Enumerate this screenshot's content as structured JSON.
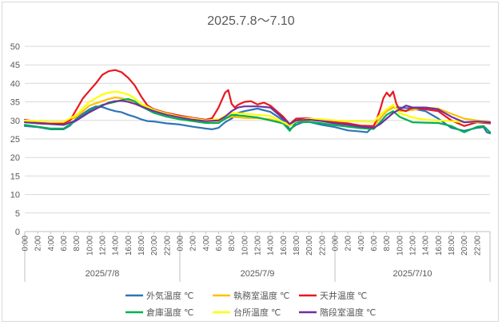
{
  "chart_data": {
    "type": "line",
    "title": "2025.7.8～7.10",
    "ylim": [
      0,
      50
    ],
    "y_ticks": [
      "0",
      "5",
      "10",
      "15",
      "20",
      "25",
      "30",
      "35",
      "40",
      "45",
      "50"
    ],
    "x_unit_hours": 72,
    "time_tick_labels": [
      "0:00",
      "2:00",
      "4:00",
      "6:00",
      "8:00",
      "10:00",
      "12:00",
      "14:00",
      "16:00",
      "18:00",
      "20:00",
      "22:00"
    ],
    "date_labels": [
      "2025/7/8",
      "2025/7/9",
      "2025/7/10"
    ],
    "grid": "horizontal",
    "legend_position": "bottom",
    "series": [
      {
        "name": "外気温度 ℃",
        "color": "#2e75b6",
        "x": [
          0,
          2,
          4,
          6,
          7,
          8,
          9,
          10,
          11,
          12,
          13,
          14,
          15,
          16,
          17,
          18,
          19,
          20,
          22,
          24,
          26,
          28,
          29,
          30,
          31,
          32,
          33,
          34,
          36,
          38,
          40,
          41,
          42,
          43,
          44,
          46,
          48,
          50,
          52,
          53,
          54,
          55,
          56,
          57,
          58,
          60,
          62,
          64,
          66,
          68,
          70,
          71,
          71.5,
          72
        ],
        "y": [
          28.5,
          28.2,
          27.6,
          27.6,
          28.6,
          30.5,
          31.8,
          33,
          33.8,
          33.6,
          33,
          32.5,
          32.2,
          31.5,
          31,
          30.3,
          29.8,
          29.7,
          29.2,
          28.9,
          28.3,
          27.8,
          27.6,
          28,
          29.5,
          30.5,
          32,
          32.5,
          33.2,
          32.3,
          30,
          27.6,
          28.8,
          29.5,
          29.6,
          28.8,
          28.2,
          27.3,
          27,
          26.8,
          28.6,
          30.5,
          32.5,
          33.5,
          33.5,
          33.2,
          32.5,
          30.5,
          28,
          27.2,
          28,
          28.2,
          26.8,
          26.5
        ]
      },
      {
        "name": "執務室温度 ℃",
        "color": "#ffc000",
        "x": [
          0,
          2,
          4,
          6,
          8,
          10,
          12,
          13,
          14,
          15,
          16,
          17,
          18,
          20,
          22,
          24,
          26,
          28,
          30,
          31,
          32,
          34,
          36,
          38,
          40,
          41,
          42,
          44,
          46,
          48,
          50,
          52,
          54,
          55,
          56,
          57,
          58,
          60,
          62,
          64,
          66,
          68,
          70,
          72
        ],
        "y": [
          30,
          29.6,
          29.3,
          29.3,
          31,
          34,
          35.2,
          35.8,
          36.2,
          36,
          35.5,
          35,
          34,
          32.5,
          31.5,
          30.8,
          30.3,
          29.8,
          29.8,
          30.5,
          31,
          30.7,
          30.6,
          30.3,
          29.3,
          28.6,
          29.5,
          30.2,
          29.8,
          29.5,
          29.2,
          28.6,
          28.4,
          30.5,
          32.5,
          33.6,
          32.5,
          32.8,
          33.5,
          33.2,
          31.8,
          30.5,
          30,
          29.6
        ]
      },
      {
        "name": "天井温度 ℃",
        "color": "#e7191f",
        "x": [
          0,
          2,
          4,
          6,
          7,
          8,
          9,
          10,
          11,
          12,
          13,
          14,
          15,
          16,
          17,
          18,
          19,
          20,
          22,
          24,
          26,
          28,
          29,
          30,
          30.5,
          31,
          31.5,
          32,
          32.5,
          33,
          34,
          35,
          36,
          37,
          38,
          40,
          41,
          42,
          44,
          46,
          48,
          50,
          52,
          54,
          54.5,
          55,
          55.5,
          56,
          56.5,
          57,
          57.5,
          58,
          59,
          60,
          62,
          64,
          66,
          68,
          70,
          72
        ],
        "y": [
          30.2,
          29.6,
          29.4,
          29.2,
          30,
          33,
          36,
          38,
          40,
          42.3,
          43.3,
          43.6,
          43,
          41.5,
          39.5,
          36.5,
          34,
          33,
          32,
          31.3,
          30.7,
          30.2,
          30.6,
          33.5,
          35.5,
          37.5,
          38.2,
          34.5,
          33.5,
          34.2,
          35,
          35.2,
          34.3,
          34.8,
          34,
          31,
          29,
          30.5,
          30.6,
          30,
          29.5,
          29.2,
          28.6,
          28.5,
          30.5,
          33,
          36,
          37.5,
          36.5,
          37.8,
          34.5,
          33,
          32.5,
          33.5,
          33,
          32.5,
          30,
          28.5,
          29.5,
          29.2
        ]
      },
      {
        "name": "倉庫温度 ℃",
        "color": "#00b050",
        "x": [
          0,
          2,
          4,
          6,
          8,
          10,
          12,
          14,
          15,
          16,
          17,
          18,
          20,
          22,
          24,
          26,
          28,
          30,
          32,
          34,
          36,
          38,
          40,
          41,
          42,
          44,
          46,
          48,
          50,
          52,
          54,
          55,
          56,
          57,
          58,
          60,
          62,
          64,
          66,
          68,
          70,
          71,
          72
        ],
        "y": [
          28.8,
          28.3,
          27.8,
          27.8,
          30,
          32.5,
          34.2,
          35,
          35.5,
          35.8,
          35.2,
          33.8,
          32,
          31,
          30.3,
          29.8,
          29.3,
          29.3,
          31.5,
          31.2,
          30.8,
          30,
          29.2,
          27.2,
          29.5,
          29.6,
          29.2,
          28.7,
          28.3,
          27.9,
          27.7,
          29.5,
          31.5,
          32.5,
          31,
          29.5,
          29.4,
          29.3,
          28.5,
          26.8,
          28.3,
          28.5,
          26.8
        ]
      },
      {
        "name": "台所温度 ℃",
        "color": "#ffff00",
        "x": [
          0,
          2,
          4,
          6,
          8,
          10,
          12,
          13,
          14,
          15,
          16,
          17,
          18,
          20,
          22,
          24,
          26,
          28,
          30,
          31,
          32,
          34,
          36,
          38,
          40,
          41,
          42,
          44,
          46,
          48,
          50,
          52,
          54,
          55,
          56,
          57,
          58,
          60,
          62,
          64,
          66,
          68,
          70,
          72
        ],
        "y": [
          30,
          29.8,
          29.6,
          29.6,
          31.5,
          35,
          37,
          37.5,
          37.8,
          37.5,
          37,
          36,
          34.5,
          32.8,
          31.8,
          31,
          30.5,
          30,
          30.3,
          31.3,
          32,
          31.8,
          31.5,
          31.2,
          29.5,
          28.7,
          29.8,
          30.5,
          30.3,
          30,
          29.8,
          29.7,
          29.6,
          31.5,
          33,
          34.2,
          32,
          30.8,
          30.2,
          30,
          29.8,
          29.5,
          29.6,
          29.5
        ]
      },
      {
        "name": "階段室温度 ℃",
        "color": "#7030a0",
        "x": [
          0,
          2,
          4,
          6,
          8,
          10,
          12,
          13,
          14,
          15,
          16,
          17,
          18,
          20,
          22,
          24,
          26,
          28,
          30,
          31,
          32,
          33,
          34,
          36,
          38,
          40,
          41,
          42,
          44,
          46,
          48,
          50,
          52,
          54,
          55,
          56,
          57,
          58,
          59,
          60,
          62,
          64,
          66,
          68,
          70,
          72
        ],
        "y": [
          29.5,
          29.2,
          29,
          28.8,
          30,
          32.2,
          34,
          34.8,
          35.2,
          35.3,
          35,
          34.5,
          33.8,
          32.5,
          31.5,
          30.8,
          30.2,
          29.8,
          30,
          31,
          32.5,
          33.5,
          33.8,
          33.8,
          33.5,
          30.5,
          29,
          30,
          30.2,
          29.8,
          29.2,
          28.8,
          28.3,
          28,
          29,
          30.5,
          32,
          33,
          34,
          33.5,
          33.5,
          33,
          31,
          29.5,
          29.7,
          29.5
        ]
      }
    ]
  }
}
